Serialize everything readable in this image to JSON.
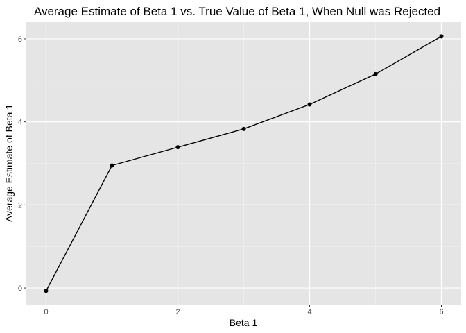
{
  "chart_data": {
    "type": "line",
    "title": "Average Estimate of Beta 1 vs. True Value of Beta 1, When Null was Rejected",
    "xlabel": "Beta 1",
    "ylabel": "Average Estimate of Beta 1",
    "x": [
      0,
      1,
      2,
      3,
      4,
      5,
      6
    ],
    "y": [
      -0.07,
      2.95,
      3.39,
      3.83,
      4.42,
      5.15,
      6.06
    ],
    "xlim": [
      -0.3,
      6.3
    ],
    "ylim": [
      -0.4,
      6.4
    ],
    "xticks": [
      0,
      2,
      4,
      6
    ],
    "yticks": [
      0,
      2,
      4,
      6
    ],
    "xtick_labels": [
      "0",
      "2",
      "4",
      "6"
    ],
    "ytick_labels": [
      "0",
      "2",
      "4",
      "6"
    ],
    "grid": true,
    "markers": true,
    "colors": {
      "panel_background": "#e5e5e5",
      "grid_major": "#ffffff",
      "grid_minor": "#f2f2f2",
      "line": "#000000",
      "point": "#000000",
      "tick_text": "#4d4d4d",
      "tick_mark": "#333333"
    }
  }
}
